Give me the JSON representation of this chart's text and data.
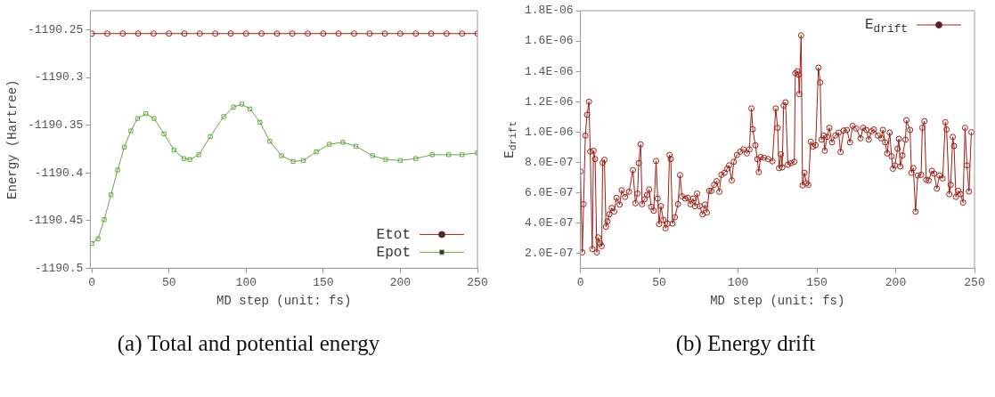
{
  "chart_data": [
    {
      "type": "line",
      "xlabel": "MD step (unit: fs)",
      "ylabel": "Energy (Hartree)",
      "xlim": [
        -1,
        250
      ],
      "xticks": [
        0,
        50,
        100,
        150,
        200,
        250
      ],
      "ylim": [
        -1190.5,
        -1190.23
      ],
      "yticks": [
        -1190.5,
        -1190.45,
        -1190.4,
        -1190.35,
        -1190.3,
        -1190.25
      ],
      "legend": "bottom right",
      "annotations": [
        "(a) Total and potential energy"
      ],
      "series": [
        {
          "name": "Etot",
          "color": "#a01e14",
          "marker": "circle",
          "x": [
            0,
            10,
            20,
            30,
            40,
            50,
            60,
            70,
            80,
            90,
            100,
            110,
            120,
            130,
            140,
            150,
            160,
            170,
            180,
            190,
            200,
            210,
            220,
            230,
            240,
            250
          ],
          "values": [
            -1190.254,
            -1190.254,
            -1190.254,
            -1190.254,
            -1190.254,
            -1190.254,
            -1190.254,
            -1190.254,
            -1190.254,
            -1190.254,
            -1190.254,
            -1190.254,
            -1190.254,
            -1190.254,
            -1190.254,
            -1190.254,
            -1190.254,
            -1190.254,
            -1190.254,
            -1190.254,
            -1190.254,
            -1190.254,
            -1190.254,
            -1190.254,
            -1190.254,
            -1190.254
          ]
        },
        {
          "name": "Epot",
          "color": "#65a843",
          "marker": "square",
          "x": [
            0,
            4,
            8,
            12.4,
            16.7,
            21,
            25.3,
            29.6,
            35,
            40.3,
            46.8,
            53.2,
            59.7,
            63.5,
            69.3,
            76.8,
            85.4,
            91.8,
            97.2,
            102.5,
            109,
            115.4,
            123,
            130.5,
            137,
            145.5,
            154,
            162.7,
            171.2,
            182,
            190.5,
            200,
            210,
            220.6,
            231.3,
            240,
            250
          ],
          "values": [
            -1190.474,
            -1190.469,
            -1190.449,
            -1190.423,
            -1190.397,
            -1190.373,
            -1190.356,
            -1190.343,
            -1190.338,
            -1190.343,
            -1190.359,
            -1190.376,
            -1190.385,
            -1190.386,
            -1190.381,
            -1190.362,
            -1190.341,
            -1190.331,
            -1190.328,
            -1190.333,
            -1190.347,
            -1190.367,
            -1190.382,
            -1190.388,
            -1190.387,
            -1190.378,
            -1190.37,
            -1190.368,
            -1190.372,
            -1190.382,
            -1190.386,
            -1190.387,
            -1190.385,
            -1190.381,
            -1190.381,
            -1190.381,
            -1190.379
          ]
        }
      ]
    },
    {
      "type": "line",
      "xlabel": "MD step (unit: fs)",
      "ylabel": "E$_{drift}$",
      "xlim": [
        0,
        250
      ],
      "xticks": [
        0,
        50,
        100,
        150,
        200,
        250
      ],
      "ylim": [
        1e-07,
        1.8e-06
      ],
      "yticks": [
        {
          "value": 2e-07,
          "label": "2.0E-07"
        },
        {
          "value": 4e-07,
          "label": "4.0E-07"
        },
        {
          "value": 6e-07,
          "label": "6.0E-07"
        },
        {
          "value": 8e-07,
          "label": "8.0E-07"
        },
        {
          "value": 1e-06,
          "label": "1.0E-06"
        },
        {
          "value": 1.2e-06,
          "label": "1.2E-06"
        },
        {
          "value": 1.4e-06,
          "label": "1.4E-06"
        },
        {
          "value": 1.6e-06,
          "label": "1.6E-06"
        },
        {
          "value": 1.8e-06,
          "label": "1.8E-06"
        }
      ],
      "legend": "top right",
      "annotations": [
        "(b) Energy drift"
      ],
      "series": [
        {
          "name": "E$_{drift}$",
          "color": "#a01e14",
          "marker": "circle",
          "x": [
            0,
            1.2,
            2,
            3.1,
            4.2,
            5.4,
            6.2,
            7.5,
            8.3,
            9.3,
            10.4,
            11.2,
            12.5,
            13.5,
            14.1,
            15.2,
            16.2,
            17.2,
            18.3,
            19.9,
            21.4,
            22.9,
            24.9,
            26.2,
            28.3,
            30.8,
            33.3,
            34.9,
            36.2,
            37,
            38.2,
            39.1,
            40.7,
            42.2,
            43.6,
            44.9,
            46.5,
            48,
            49,
            49.9,
            51.1,
            52.6,
            54,
            55.3,
            56.5,
            57.3,
            58.4,
            59.9,
            61.9,
            63.2,
            64.4,
            66.5,
            68.2,
            69.8,
            71.5,
            72.7,
            74,
            75.6,
            77.5,
            79,
            80.2,
            81.7,
            83.1,
            84.8,
            86.4,
            88.1,
            89.4,
            91.4,
            93.1,
            94.3,
            96,
            97.3,
            99.3,
            101.4,
            103.5,
            105.6,
            107.2,
            108.5,
            109.3,
            111,
            112.2,
            113.1,
            114.3,
            116.4,
            119.1,
            121.8,
            123.9,
            125.1,
            126,
            127.2,
            128,
            128.9,
            130.1,
            131.6,
            133.6,
            135.7,
            136.3,
            137.6,
            138.4,
            138.8,
            140,
            140.9,
            142.1,
            143.4,
            144.6,
            146.1,
            147.5,
            149.2,
            151,
            152.1,
            152.9,
            154.4,
            155,
            156.5,
            157.9,
            159.6,
            161.7,
            163.8,
            165,
            167,
            169,
            171,
            172.7,
            175,
            177.7,
            179.3,
            181.4,
            182.9,
            184.6,
            186.2,
            188.7,
            190.8,
            191.9,
            193.3,
            194.6,
            196.2,
            197.4,
            198.3,
            199.5,
            201.2,
            202,
            202.9,
            204.3,
            206.2,
            206.8,
            209.1,
            210,
            211.2,
            212.6,
            214,
            216.1,
            216.9,
            218.2,
            219.4,
            220.9,
            223,
            224.4,
            226.1,
            227.8,
            229.8,
            231.5,
            232.3,
            234,
            234.9,
            236.2,
            237,
            238.2,
            239.7,
            241.2,
            242.7,
            244,
            245.2,
            246.5,
            248
          ],
          "values": [
            7.39e-07,
            2.05e-07,
            5.23e-07,
            9.76e-07,
            1.113e-06,
            1.199e-06,
            8.7e-07,
            2.27e-07,
            8.76e-07,
            8.21e-07,
            2.05e-07,
            3.04e-07,
            2.64e-07,
            2.46e-07,
            7.97e-07,
            8.16e-07,
            3.74e-07,
            4.1e-07,
            4.56e-07,
            4.98e-07,
            4.74e-07,
            5.65e-07,
            5.2e-07,
            6.15e-07,
            5.71e-07,
            6.05e-07,
            7.48e-07,
            5.29e-07,
            5.93e-07,
            7.94e-07,
            9.18e-07,
            5.23e-07,
            5.56e-07,
            5.84e-07,
            6.2e-07,
            5.06e-07,
            4.8e-07,
            8.08e-07,
            5.6e-07,
            3.92e-07,
            5.1e-07,
            4.19e-07,
            3.64e-07,
            3.95e-07,
            8.48e-07,
            8.21e-07,
            3.95e-07,
            4.37e-07,
            5.23e-07,
            7.15e-07,
            5.75e-07,
            5.6e-07,
            5.65e-07,
            5.23e-07,
            5.6e-07,
            5.1e-07,
            5.93e-07,
            5.1e-07,
            4.56e-07,
            5.2e-07,
            4.68e-07,
            6.11e-07,
            6.11e-07,
            6.51e-07,
            6.75e-07,
            6.05e-07,
            7.17e-07,
            7.3e-07,
            7.57e-07,
            7.79e-07,
            6.8e-07,
            8.03e-07,
            8.48e-07,
            8.7e-07,
            8.85e-07,
            8.58e-07,
            8.85e-07,
            1.155e-06,
            1.018e-06,
            9.12e-07,
            8.21e-07,
            7.35e-07,
            8.34e-07,
            8.3e-07,
            8.21e-07,
            8.06e-07,
            1.155e-06,
            1.027e-06,
            7.61e-07,
            8.52e-07,
            7.66e-07,
            1.174e-06,
            1.195e-06,
            7.84e-07,
            7.94e-07,
            8.03e-07,
            1.387e-06,
            1.4e-06,
            1.378e-06,
            1.25e-06,
            1.637e-06,
            6.47e-07,
            7.3e-07,
            6.62e-07,
            6.51e-07,
            9.36e-07,
            9.03e-07,
            9.12e-07,
            1.424e-06,
            1.327e-06,
            9.49e-07,
            9.76e-07,
            8.76e-07,
            9.67e-07,
            1.027e-06,
            9.31e-07,
            9.76e-07,
            9.95e-07,
            8.67e-07,
            1.009e-06,
            1.013e-06,
            9.31e-07,
            1.04e-06,
            1.022e-06,
            9.58e-07,
            1.027e-06,
            1.013e-06,
            9.49e-07,
            1.004e-06,
            1.016e-06,
            9.76e-07,
            9.58e-07,
            1.013e-06,
            9.31e-07,
            8.58e-07,
            9.95e-07,
            8.39e-07,
            7.57e-07,
            7.79e-07,
            8.89e-07,
            9.54e-07,
            7.72e-07,
            8.45e-07,
            9.49e-07,
            1.077e-06,
            1.013e-06,
            7.3e-07,
            7.61e-07,
            4.74e-07,
            7.12e-07,
            7.17e-07,
            1.027e-06,
            1.071e-06,
            6.84e-07,
            6.8e-07,
            7.43e-07,
            7.24e-07,
            6.26e-07,
            7.12e-07,
            6.93e-07,
            1.064e-06,
            1.016e-06,
            5.89e-07,
            6.51e-07,
            9.67e-07,
            9.07e-07,
            5.71e-07,
            6.11e-07,
            5.89e-07,
            5.34e-07,
            1.027e-06,
            7.79e-07,
            6.07e-07,
            9.98e-07
          ]
        }
      ]
    }
  ]
}
